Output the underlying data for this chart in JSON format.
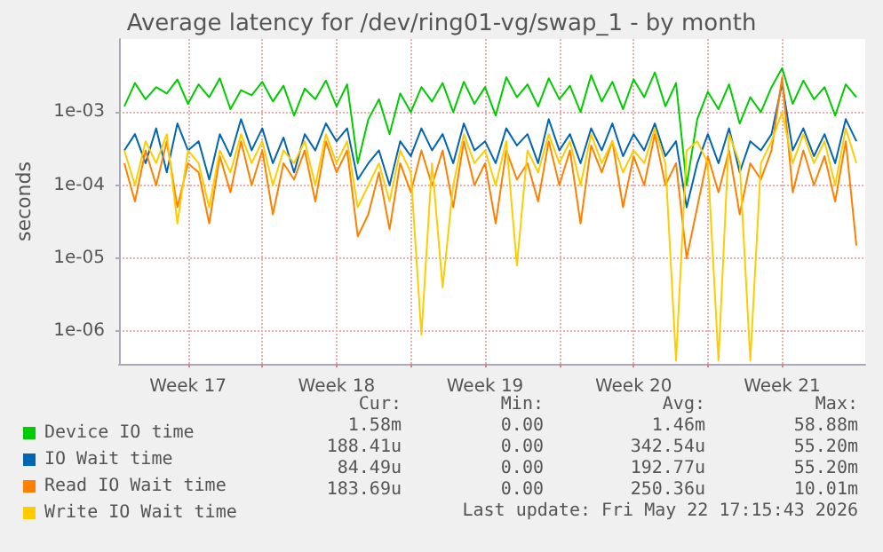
{
  "chart_data": {
    "type": "line",
    "title": "Average latency for /dev/ring01-vg/swap_1 - by month",
    "ylabel": "seconds",
    "log": "y",
    "grid": true,
    "legend": "bottom",
    "marker": "none",
    "line_style": "solid",
    "ylim": [
      3.6e-07,
      0.01
    ],
    "yticks": [
      {
        "value": 1e-06,
        "label": "1e-06"
      },
      {
        "value": 1e-05,
        "label": "1e-05"
      },
      {
        "value": 0.0001,
        "label": "1e-04"
      },
      {
        "value": 0.001,
        "label": "1e-03"
      }
    ],
    "xlim": [
      "2026-04-20T06:00",
      "2026-05-25T10:00"
    ],
    "xticks": [
      {
        "value": "2026-04-23T12:00",
        "label": "Week 17"
      },
      {
        "value": "2026-04-27T00:00",
        "label": null
      },
      {
        "value": "2026-04-30T12:00",
        "label": "Week 18"
      },
      {
        "value": "2026-05-04T00:00",
        "label": null
      },
      {
        "value": "2026-05-07T12:00",
        "label": "Week 19"
      },
      {
        "value": "2026-05-11T00:00",
        "label": null
      },
      {
        "value": "2026-05-14T12:00",
        "label": "Week 20"
      },
      {
        "value": "2026-05-18T00:00",
        "label": null
      },
      {
        "value": "2026-05-21T12:00",
        "label": "Week 21"
      }
    ],
    "x": [
      "2026-04-20T12:00",
      "2026-04-21T00:00",
      "2026-04-21T12:00",
      "2026-04-22T00:00",
      "2026-04-22T12:00",
      "2026-04-23T00:00",
      "2026-04-23T12:00",
      "2026-04-24T00:00",
      "2026-04-24T12:00",
      "2026-04-25T00:00",
      "2026-04-25T12:00",
      "2026-04-26T00:00",
      "2026-04-26T12:00",
      "2026-04-27T00:00",
      "2026-04-27T12:00",
      "2026-04-28T00:00",
      "2026-04-28T12:00",
      "2026-04-29T00:00",
      "2026-04-29T12:00",
      "2026-04-30T00:00",
      "2026-04-30T12:00",
      "2026-05-01T00:00",
      "2026-05-01T12:00",
      "2026-05-02T00:00",
      "2026-05-02T12:00",
      "2026-05-03T00:00",
      "2026-05-03T12:00",
      "2026-05-04T00:00",
      "2026-05-04T12:00",
      "2026-05-05T00:00",
      "2026-05-05T12:00",
      "2026-05-06T00:00",
      "2026-05-06T12:00",
      "2026-05-07T00:00",
      "2026-05-07T12:00",
      "2026-05-08T00:00",
      "2026-05-08T12:00",
      "2026-05-09T00:00",
      "2026-05-09T12:00",
      "2026-05-10T00:00",
      "2026-05-10T12:00",
      "2026-05-11T00:00",
      "2026-05-11T12:00",
      "2026-05-12T00:00",
      "2026-05-12T12:00",
      "2026-05-13T00:00",
      "2026-05-13T12:00",
      "2026-05-14T00:00",
      "2026-05-14T12:00",
      "2026-05-15T00:00",
      "2026-05-15T12:00",
      "2026-05-16T00:00",
      "2026-05-16T12:00",
      "2026-05-17T00:00",
      "2026-05-17T12:00",
      "2026-05-18T00:00",
      "2026-05-18T12:00",
      "2026-05-19T00:00",
      "2026-05-19T12:00",
      "2026-05-20T00:00",
      "2026-05-20T12:00",
      "2026-05-21T00:00",
      "2026-05-21T12:00",
      "2026-05-22T00:00",
      "2026-05-22T12:00",
      "2026-05-23T00:00",
      "2026-05-23T12:00",
      "2026-05-24T00:00",
      "2026-05-24T12:00",
      "2026-05-25T00:00"
    ],
    "series": [
      {
        "name": "Device IO time",
        "color": "#00cc00",
        "values": [
          0.0012,
          0.0025,
          0.0015,
          0.0022,
          0.0018,
          0.0028,
          0.0013,
          0.0024,
          0.0016,
          0.0029,
          0.0011,
          0.002,
          0.0017,
          0.0026,
          0.0014,
          0.0023,
          0.0009,
          0.0021,
          0.0015,
          0.0027,
          0.0012,
          0.0024,
          0.0002,
          0.0008,
          0.0015,
          0.0005,
          0.0018,
          0.001,
          0.0022,
          0.0014,
          0.0025,
          0.001,
          0.0026,
          0.0013,
          0.0022,
          0.0009,
          0.003,
          0.0016,
          0.0024,
          0.0012,
          0.0029,
          0.0015,
          0.0023,
          0.001,
          0.0032,
          0.0014,
          0.0026,
          0.0011,
          0.0028,
          0.0016,
          0.0035,
          0.0012,
          0.0025,
          0.0001,
          0.0008,
          0.0019,
          0.0011,
          0.0024,
          0.0007,
          0.0016,
          0.001,
          0.0022,
          0.004,
          0.0013,
          0.0027,
          0.0015,
          0.0022,
          0.0009,
          0.0024,
          0.0016
        ]
      },
      {
        "name": "IO Wait time",
        "color": "#0066b3",
        "values": [
          0.0003,
          0.0005,
          0.0002,
          0.0006,
          0.00015,
          0.0007,
          0.0003,
          0.0004,
          0.00012,
          0.0005,
          0.00025,
          0.0008,
          0.0003,
          0.0006,
          0.0002,
          0.00045,
          0.00015,
          0.0005,
          0.0003,
          0.0007,
          0.0004,
          0.0006,
          0.00012,
          0.0002,
          0.0003,
          0.0001,
          0.0004,
          0.00025,
          0.0006,
          0.0003,
          0.0005,
          0.0002,
          0.0007,
          0.0003,
          0.0004,
          0.0002,
          0.0006,
          0.00035,
          0.0005,
          0.0002,
          0.0008,
          0.0003,
          0.0005,
          0.0002,
          0.0006,
          0.0003,
          0.0007,
          0.00025,
          0.0005,
          0.0003,
          0.0007,
          0.00025,
          0.0004,
          5e-05,
          0.0002,
          0.0005,
          0.0002,
          0.0006,
          0.00015,
          0.0004,
          0.0003,
          0.0005,
          0.0025,
          0.0003,
          0.0006,
          0.00025,
          0.0005,
          0.0002,
          0.0008,
          0.0004
        ]
      },
      {
        "name": "Read IO Wait time",
        "color": "#ff8000",
        "values": [
          0.0002,
          6e-05,
          0.0003,
          0.0001,
          0.0004,
          5e-05,
          0.0002,
          0.00015,
          3e-05,
          0.00025,
          8e-05,
          0.0004,
          0.0001,
          0.0003,
          4e-05,
          0.0002,
          0.00012,
          0.0003,
          6e-05,
          0.0004,
          0.00015,
          0.0003,
          2e-05,
          4e-05,
          0.00015,
          2.5e-05,
          0.0002,
          8e-05,
          0.0003,
          0.0001,
          0.0003,
          5e-05,
          0.0004,
          0.0001,
          0.0002,
          3e-05,
          0.0003,
          0.00012,
          0.0002,
          6e-05,
          0.0004,
          0.0001,
          0.0003,
          3e-05,
          0.00035,
          0.00015,
          0.0004,
          5e-05,
          0.00025,
          0.0001,
          0.0005,
          0.0001,
          0.0002,
          1e-05,
          5e-05,
          0.00025,
          8e-05,
          0.0003,
          4e-05,
          0.0002,
          0.00012,
          0.0003,
          0.003,
          8e-05,
          0.0003,
          0.0001,
          0.00025,
          6e-05,
          0.0004,
          1.5e-05
        ]
      },
      {
        "name": "Write IO Wait time",
        "color": "#ffcc00",
        "values": [
          0.0003,
          0.0001,
          0.0004,
          0.0002,
          0.0005,
          3e-05,
          0.0003,
          0.0002,
          5e-05,
          0.0003,
          0.00015,
          0.0005,
          0.0002,
          0.0004,
          0.0001,
          0.0003,
          0.0002,
          0.0004,
          0.0001,
          0.0005,
          0.0002,
          0.0004,
          5e-05,
          0.0001,
          0.0002,
          6e-05,
          0.0003,
          0.00015,
          9e-07,
          0.0002,
          4e-06,
          0.0001,
          0.0005,
          0.0002,
          0.0003,
          0.0001,
          0.0004,
          8e-06,
          0.0003,
          0.00015,
          0.0005,
          0.0002,
          0.0004,
          0.0001,
          0.0005,
          0.0002,
          0.0004,
          0.00015,
          0.0003,
          0.0002,
          0.0006,
          0.0002,
          4e-07,
          0.0003,
          0.0004,
          0.0002,
          4e-07,
          0.0005,
          0.0002,
          4e-07,
          0.0002,
          0.0004,
          0.001,
          0.0002,
          0.0005,
          0.0002,
          0.0004,
          0.0001,
          0.0006,
          0.0002
        ]
      }
    ],
    "annotations": [
      "Cur:",
      "Min:",
      "Avg:",
      "Max:",
      "1.58m",
      "0.00",
      "1.46m",
      "58.88m",
      "188.41u",
      "0.00",
      "342.54u",
      "55.20m",
      "84.49u",
      "0.00",
      "192.77u",
      "55.20m",
      "183.69u",
      "0.00",
      "250.36u",
      "10.01m",
      "Last update: Fri May 22 17:15:43 2026"
    ]
  }
}
